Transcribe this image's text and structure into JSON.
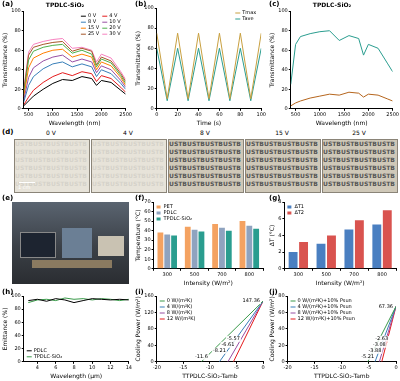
{
  "chart_data": [
    {
      "panel_label": "(a)",
      "type": "line",
      "title": "TPDLC-SiO₂",
      "x_label": "Wavelength (nm)",
      "y_label": "Transmittance (%)",
      "x": [
        400,
        500,
        600,
        800,
        1000,
        1200,
        1400,
        1600,
        1800,
        1900,
        2000,
        2200,
        2400,
        2500
      ],
      "series": [
        {
          "name": "0 V",
          "color": "#000000",
          "values": [
            3,
            8,
            13,
            20,
            26,
            30,
            29,
            33,
            31,
            24,
            29,
            27,
            19,
            15
          ]
        },
        {
          "name": "4 V",
          "color": "#e41a1c",
          "values": [
            4,
            12,
            19,
            27,
            33,
            37,
            34,
            38,
            36,
            28,
            34,
            31,
            22,
            17
          ]
        },
        {
          "name": "8 V",
          "color": "#377eb8",
          "values": [
            7,
            24,
            33,
            41,
            46,
            48,
            43,
            46,
            43,
            33,
            40,
            36,
            26,
            20
          ]
        },
        {
          "name": "10 V",
          "color": "#984ea3",
          "values": [
            9,
            32,
            42,
            49,
            53,
            55,
            48,
            51,
            48,
            37,
            44,
            40,
            29,
            22
          ]
        },
        {
          "name": "15 V",
          "color": "#ff7f00",
          "values": [
            12,
            42,
            52,
            57,
            60,
            61,
            53,
            56,
            53,
            40,
            48,
            44,
            32,
            24
          ]
        },
        {
          "name": "20 V",
          "color": "#4daf4a",
          "values": [
            15,
            50,
            59,
            63,
            65,
            66,
            57,
            60,
            56,
            43,
            51,
            47,
            34,
            26
          ]
        },
        {
          "name": "25 V",
          "color": "#a65628",
          "values": [
            18,
            55,
            63,
            66,
            68,
            69,
            59,
            62,
            59,
            45,
            53,
            49,
            36,
            28
          ]
        },
        {
          "name": "30 V",
          "color": "#f781bf",
          "values": [
            20,
            58,
            66,
            69,
            71,
            72,
            62,
            63,
            60,
            48,
            56,
            52,
            38,
            30
          ]
        }
      ],
      "xlim": [
        400,
        2500
      ],
      "xticks": [
        500,
        1000,
        1500,
        2000,
        2500
      ],
      "ylim": [
        0,
        100
      ],
      "yticks": [
        0,
        20,
        40,
        60,
        80,
        100
      ],
      "grid": false,
      "legend": "upper right"
    },
    {
      "panel_label": "(b)",
      "type": "line",
      "x_label": "Time (s)",
      "y_label": "Transmittance (%)",
      "x": [
        0,
        10,
        20,
        30,
        40,
        50,
        60,
        70,
        80,
        90,
        100
      ],
      "series": [
        {
          "name": "Tmax",
          "color": "#c8a040",
          "values": [
            75,
            10,
            75,
            10,
            75,
            10,
            75,
            10,
            75,
            10,
            75
          ]
        },
        {
          "name": "Tave",
          "color": "#2a9d8f",
          "values": [
            60,
            8,
            60,
            8,
            60,
            8,
            60,
            8,
            60,
            8,
            60
          ]
        }
      ],
      "xlim": [
        0,
        100
      ],
      "xticks": [
        0,
        20,
        40,
        60,
        80,
        100
      ],
      "ylim": [
        0,
        100
      ],
      "yticks": [
        0,
        20,
        40,
        60,
        80,
        100
      ],
      "grid": false,
      "legend": "upper right"
    },
    {
      "panel_label": "(c)",
      "type": "line",
      "title": "TPDLC-SiO₂",
      "x_label": "Wavelength (nm)",
      "y_label": "Transmittance (%)",
      "x": [
        400,
        500,
        600,
        800,
        1000,
        1200,
        1400,
        1600,
        1800,
        1900,
        2000,
        2200,
        2400,
        2500
      ],
      "series": [
        {
          "color": "#2a9d8f",
          "values": [
            25,
            66,
            74,
            77,
            79,
            80,
            70,
            75,
            72,
            55,
            66,
            62,
            46,
            38
          ]
        },
        {
          "color": "#b5651d",
          "values": [
            3,
            6,
            8,
            11,
            13,
            15,
            14,
            17,
            16,
            12,
            15,
            14,
            10,
            8
          ]
        }
      ],
      "xlim": [
        400,
        2500
      ],
      "xticks": [
        500,
        1000,
        1500,
        2000,
        2500
      ],
      "ylim": [
        0,
        100
      ],
      "yticks": [
        0,
        20,
        40,
        60,
        80,
        100
      ],
      "grid": false
    },
    {
      "panel_label": "(f)",
      "type": "bar",
      "x_label": "Intensity (W/m²)",
      "y_label": "Temperature (°C)",
      "categories": [
        "300",
        "500",
        "700",
        "800"
      ],
      "series": [
        {
          "name": "PET",
          "color": "#f4a261",
          "values": [
            38,
            44,
            47,
            50
          ]
        },
        {
          "name": "PDLC",
          "color": "#8fa3bf",
          "values": [
            36,
            41,
            43,
            45
          ]
        },
        {
          "name": "TPDLC-SiO₂",
          "color": "#2a9d8f",
          "values": [
            35,
            39,
            40,
            42
          ]
        }
      ],
      "ylim": [
        0,
        70
      ],
      "yticks": [
        0,
        10,
        20,
        30,
        40,
        50,
        60,
        70
      ],
      "grid": false,
      "legend": "upper left"
    },
    {
      "panel_label": "(g)",
      "type": "bar",
      "x_label": "Intensity (W/m²)",
      "y_label": "ΔT (°C)",
      "categories": [
        "300",
        "500",
        "700",
        "800"
      ],
      "series": [
        {
          "name": "ΔT1",
          "color": "#4a7fc1",
          "values": [
            2,
            3,
            4.7,
            5.3
          ]
        },
        {
          "name": "ΔT2",
          "color": "#d9534f",
          "values": [
            3.2,
            4,
            5.8,
            7
          ]
        }
      ],
      "ylim": [
        0,
        8
      ],
      "yticks": [
        0,
        2,
        4,
        6,
        8
      ],
      "grid": false,
      "legend": "upper left"
    },
    {
      "panel_label": "(h)",
      "type": "line",
      "x_label": "Wavelength (μm)",
      "y_label": "Emittance (%)",
      "x": [
        3,
        4,
        5,
        6,
        7,
        8,
        9,
        10,
        11,
        12,
        13,
        14
      ],
      "series": [
        {
          "name": "PDLC",
          "color": "#000000",
          "values": [
            93,
            95,
            92,
            96,
            94,
            90,
            93,
            96,
            95,
            94,
            95,
            94
          ]
        },
        {
          "name": "TPDLC-SiO₂",
          "color": "#3a9a4a",
          "values": [
            90,
            94,
            95,
            93,
            97,
            95,
            96,
            94,
            96,
            95,
            93,
            95
          ]
        }
      ],
      "xlim": [
        2.5,
        14
      ],
      "xticks": [
        4,
        6,
        8,
        10,
        12,
        14
      ],
      "ylim": [
        0,
        100
      ],
      "yticks": [
        0,
        20,
        40,
        60,
        80,
        100
      ],
      "grid": false,
      "legend": "lower left"
    },
    {
      "panel_label": "(i)",
      "type": "line",
      "x_label": "TTPDLC-SiO₂-Tamb",
      "y_label": "Cooling Power (W/m²)",
      "series": [
        {
          "name": "0 W/(m²K)",
          "color": "#3a9a4a",
          "x": [
            -11.6,
            0
          ],
          "values": [
            0,
            147.36
          ]
        },
        {
          "name": "4 W/(m²K)",
          "color": "#377eb8",
          "x": [
            -8.21,
            0
          ],
          "values": [
            0,
            147.36
          ]
        },
        {
          "name": "8 W/(m²K)",
          "color": "#984ea3",
          "x": [
            -6.61,
            0
          ],
          "values": [
            0,
            147.36
          ]
        },
        {
          "name": "12 W/(m²K)",
          "color": "#e41a1c",
          "x": [
            -5.57,
            0
          ],
          "values": [
            0,
            147.36
          ]
        }
      ],
      "annotations": [
        {
          "text": "147.36",
          "x": 0,
          "y": 147.36
        },
        {
          "text": "-11.6",
          "x": -11.6,
          "y": 0
        },
        {
          "text": "-8.21",
          "x": -8.21,
          "y": 0
        },
        {
          "text": "-6.61",
          "x": -6.61,
          "y": 0
        },
        {
          "text": "-5.57",
          "x": -5.57,
          "y": 0
        }
      ],
      "xlim": [
        -20,
        0
      ],
      "xticks": [
        -20,
        -15,
        -10,
        -5,
        0
      ],
      "ylim": [
        0,
        160
      ],
      "yticks": [
        0,
        40,
        80,
        120,
        160
      ],
      "grid": false,
      "legend": "upper left"
    },
    {
      "panel_label": "(j)",
      "type": "line",
      "x_label": "TTPDLC-SiO₂-Tamb",
      "y_label": "Cooling Power (W/m²)",
      "series": [
        {
          "name": "0 W/(m²K)+10% Psun",
          "color": "#3a9a4a",
          "x": [
            -5.21,
            0
          ],
          "values": [
            0,
            67.36
          ]
        },
        {
          "name": "4 W/(m²K)+10% Psun",
          "color": "#377eb8",
          "x": [
            -3.88,
            0
          ],
          "values": [
            0,
            67.36
          ]
        },
        {
          "name": "8 W/(m²K)+10% Psun",
          "color": "#984ea3",
          "x": [
            -3.08,
            0
          ],
          "values": [
            0,
            67.36
          ]
        },
        {
          "name": "12 W/(m²K)+10% Psun",
          "color": "#e41a1c",
          "x": [
            -2.63,
            0
          ],
          "values": [
            0,
            67.36
          ]
        }
      ],
      "annotations": [
        {
          "text": "67.36",
          "x": 0,
          "y": 67.36
        },
        {
          "text": "-5.21",
          "x": -5.21,
          "y": 0
        },
        {
          "text": "-3.88",
          "x": -3.88,
          "y": 0
        },
        {
          "text": "-3.08",
          "x": -3.08,
          "y": 0
        },
        {
          "text": "-2.63",
          "x": -2.63,
          "y": 0
        }
      ],
      "xlim": [
        -20,
        0
      ],
      "xticks": [
        -20,
        -15,
        -10,
        -5,
        0
      ],
      "ylim": [
        0,
        80
      ],
      "yticks": [
        0,
        20,
        40,
        60,
        80
      ],
      "grid": false,
      "legend": "upper left"
    }
  ],
  "photos": [
    {
      "panel_label": "(d)",
      "items": [
        "0 V",
        "4 V",
        "8 V",
        "15 V",
        "25 V"
      ],
      "background_text": "USTB",
      "scale_bar": "1 cm"
    },
    {
      "panel_label": "(e)"
    }
  ]
}
